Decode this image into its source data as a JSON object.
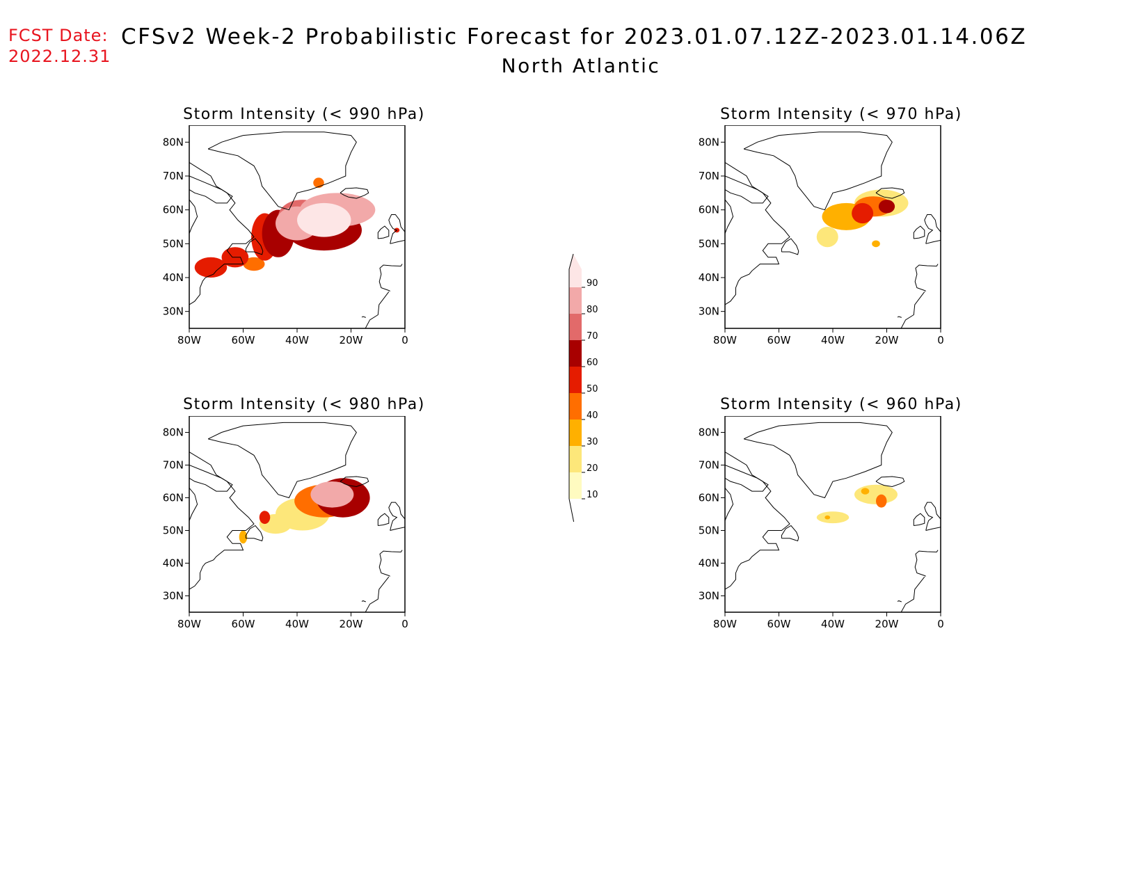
{
  "header": {
    "fcst_label": "FCST Date:",
    "fcst_date": "2022.12.31",
    "title_line1": "CFSv2 Week-2 Probabilistic Forecast for 2023.01.07.12Z-2023.01.14.06Z",
    "title_line2": "North Atlantic"
  },
  "axes": {
    "lon_ticks": [
      "80W",
      "60W",
      "40W",
      "20W",
      "0"
    ],
    "lat_ticks": [
      "80N",
      "70N",
      "60N",
      "50N",
      "40N",
      "30N"
    ],
    "lon_range": [
      -80,
      0
    ],
    "lat_range": [
      25,
      85
    ]
  },
  "panels": [
    {
      "id": "p990",
      "title": "Storm Intensity (< 990 hPa)"
    },
    {
      "id": "p970",
      "title": "Storm Intensity (< 970 hPa)"
    },
    {
      "id": "p980",
      "title": "Storm Intensity (< 980 hPa)"
    },
    {
      "id": "p960",
      "title": "Storm Intensity (< 960 hPa)"
    }
  ],
  "colorbar": {
    "levels": [
      "10",
      "20",
      "30",
      "40",
      "50",
      "60",
      "70",
      "80",
      "90"
    ],
    "colors": [
      "#fffbc0",
      "#fde77a",
      "#ffb000",
      "#ff6e00",
      "#e51c00",
      "#a80000",
      "#e26a6a",
      "#f2a9a9",
      "#fde6e6"
    ]
  },
  "chart_data": [
    {
      "type": "heatmap",
      "panel": "p990",
      "title": "Storm Intensity (< 990 hPa)",
      "blobs": [
        {
          "lon": -72,
          "lat": 43,
          "rx": 6,
          "ry": 3,
          "level": 5
        },
        {
          "lon": -63,
          "lat": 46,
          "rx": 5,
          "ry": 3,
          "level": 5
        },
        {
          "lon": -56,
          "lat": 44,
          "rx": 4,
          "ry": 2,
          "level": 4
        },
        {
          "lon": -52,
          "lat": 52,
          "rx": 5,
          "ry": 7,
          "level": 5
        },
        {
          "lon": -47,
          "lat": 53,
          "rx": 6,
          "ry": 7,
          "level": 6
        },
        {
          "lon": -38,
          "lat": 58,
          "rx": 9,
          "ry": 5,
          "level": 7
        },
        {
          "lon": -30,
          "lat": 54,
          "rx": 14,
          "ry": 6,
          "level": 6
        },
        {
          "lon": -25,
          "lat": 60,
          "rx": 14,
          "ry": 5,
          "level": 8
        },
        {
          "lon": -40,
          "lat": 56,
          "rx": 8,
          "ry": 5,
          "level": 8
        },
        {
          "lon": -30,
          "lat": 57,
          "rx": 10,
          "ry": 5,
          "level": 9
        },
        {
          "lon": -32,
          "lat": 68,
          "rx": 2,
          "ry": 1.5,
          "level": 4
        },
        {
          "lon": -3,
          "lat": 54,
          "rx": 1,
          "ry": 0.7,
          "level": 5
        }
      ]
    },
    {
      "type": "heatmap",
      "panel": "p970",
      "title": "Storm Intensity (< 970 hPa)",
      "blobs": [
        {
          "lon": -22,
          "lat": 62,
          "rx": 10,
          "ry": 4,
          "level": 2
        },
        {
          "lon": -35,
          "lat": 58,
          "rx": 9,
          "ry": 4,
          "level": 3
        },
        {
          "lon": -42,
          "lat": 52,
          "rx": 4,
          "ry": 3,
          "level": 2
        },
        {
          "lon": -25,
          "lat": 61,
          "rx": 7,
          "ry": 3,
          "level": 4
        },
        {
          "lon": -29,
          "lat": 59,
          "rx": 4,
          "ry": 3,
          "level": 5
        },
        {
          "lon": -20,
          "lat": 61,
          "rx": 3,
          "ry": 2,
          "level": 6
        },
        {
          "lon": -24,
          "lat": 50,
          "rx": 1.5,
          "ry": 1,
          "level": 3
        }
      ]
    },
    {
      "type": "heatmap",
      "panel": "p980",
      "title": "Storm Intensity (< 980 hPa)",
      "blobs": [
        {
          "lon": -38,
          "lat": 55,
          "rx": 10,
          "ry": 5,
          "level": 2
        },
        {
          "lon": -48,
          "lat": 52,
          "rx": 6,
          "ry": 3,
          "level": 2
        },
        {
          "lon": -30,
          "lat": 59,
          "rx": 11,
          "ry": 5,
          "level": 4
        },
        {
          "lon": -23,
          "lat": 60,
          "rx": 10,
          "ry": 6,
          "level": 6
        },
        {
          "lon": -27,
          "lat": 61,
          "rx": 8,
          "ry": 4,
          "level": 8
        },
        {
          "lon": -52,
          "lat": 54,
          "rx": 2,
          "ry": 2,
          "level": 5
        },
        {
          "lon": -60,
          "lat": 48,
          "rx": 1.5,
          "ry": 2,
          "level": 3
        }
      ]
    },
    {
      "type": "heatmap",
      "panel": "p960",
      "title": "Storm Intensity (< 960 hPa)",
      "blobs": [
        {
          "lon": -40,
          "lat": 54,
          "rx": 6,
          "ry": 1.8,
          "level": 2
        },
        {
          "lon": -24,
          "lat": 61,
          "rx": 8,
          "ry": 3,
          "level": 2
        },
        {
          "lon": -22,
          "lat": 59,
          "rx": 2,
          "ry": 2,
          "level": 4
        },
        {
          "lon": -28,
          "lat": 62,
          "rx": 1.5,
          "ry": 1,
          "level": 3
        },
        {
          "lon": -42,
          "lat": 54,
          "rx": 1,
          "ry": 0.6,
          "level": 3
        }
      ]
    }
  ]
}
